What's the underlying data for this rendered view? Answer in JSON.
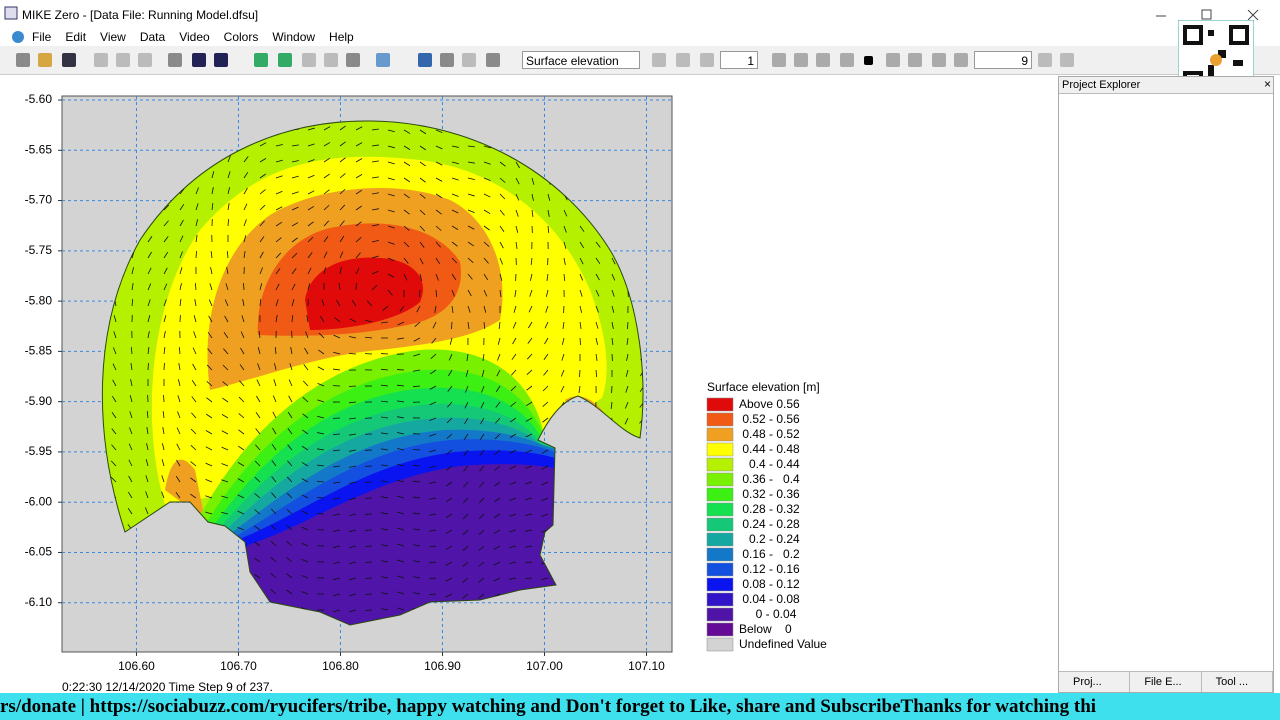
{
  "window": {
    "title": "MIKE Zero - [Data File: Running Model.dfsu]"
  },
  "menu": [
    "File",
    "Edit",
    "View",
    "Data",
    "Video",
    "Colors",
    "Window",
    "Help"
  ],
  "toolbar": {
    "item_dropdown": "Surface elevation",
    "frame_input": "1",
    "step_input": "9"
  },
  "plot": {
    "xlim": [
      106.527,
      107.125
    ],
    "ylim": [
      -6.149,
      -5.596
    ],
    "xticks": [
      {
        "value": 106.6,
        "label": "106.60"
      },
      {
        "value": 106.7,
        "label": "106.70"
      },
      {
        "value": 106.8,
        "label": "106.80"
      },
      {
        "value": 106.9,
        "label": "106.90"
      },
      {
        "value": 107.0,
        "label": "107.00"
      },
      {
        "value": 107.1,
        "label": "107.10"
      }
    ],
    "yticks": [
      {
        "value": -5.6,
        "label": "-5.60"
      },
      {
        "value": -5.65,
        "label": "-5.65"
      },
      {
        "value": -5.7,
        "label": "-5.70"
      },
      {
        "value": -5.75,
        "label": "-5.75"
      },
      {
        "value": -5.8,
        "label": "-5.80"
      },
      {
        "value": -5.85,
        "label": "-5.85"
      },
      {
        "value": -5.9,
        "label": "-5.90"
      },
      {
        "value": -5.95,
        "label": "-5.95"
      },
      {
        "value": -6.0,
        "label": "-6.00"
      },
      {
        "value": -6.05,
        "label": "-6.05"
      },
      {
        "value": -6.1,
        "label": "-6.10"
      }
    ],
    "grid": true
  },
  "legend": {
    "title": "Surface elevation [m]",
    "entries": [
      {
        "label": "Above 0.56",
        "color": "#e00a0a"
      },
      {
        "label": " 0.52 - 0.56",
        "color": "#f05a14"
      },
      {
        "label": " 0.48 - 0.52",
        "color": "#f0a020"
      },
      {
        "label": " 0.44 - 0.48",
        "color": "#ffff00"
      },
      {
        "label": "   0.4 - 0.44",
        "color": "#b4f000"
      },
      {
        "label": " 0.36 -   0.4",
        "color": "#78f000"
      },
      {
        "label": " 0.32 - 0.36",
        "color": "#3cf014"
      },
      {
        "label": " 0.28 - 0.32",
        "color": "#14e050"
      },
      {
        "label": " 0.24 - 0.28",
        "color": "#14c878"
      },
      {
        "label": "   0.2 - 0.24",
        "color": "#14a8a0"
      },
      {
        "label": " 0.16 -   0.2",
        "color": "#1478c8"
      },
      {
        "label": " 0.12 - 0.16",
        "color": "#1450e0"
      },
      {
        "label": " 0.08 - 0.12",
        "color": "#0a14f0"
      },
      {
        "label": " 0.04 - 0.08",
        "color": "#3214c8"
      },
      {
        "label": "     0 - 0.04",
        "color": "#5014a8"
      },
      {
        "label": "Below    0",
        "color": "#640a96"
      },
      {
        "label": "Undefined Value",
        "color": "#d3d3d3"
      }
    ]
  },
  "status": "0:22:30 12/14/2020  Time Step 9 of 237.",
  "explorer": {
    "title": "Project Explorer",
    "tabs": [
      "Proj...",
      "File E...",
      "Tool ..."
    ]
  },
  "banner": "rs/donate | https://sociabuzz.com/ryucifers/tribe, happy watching and Don't forget to Like, share and SubscribeThanks for watching thi"
}
